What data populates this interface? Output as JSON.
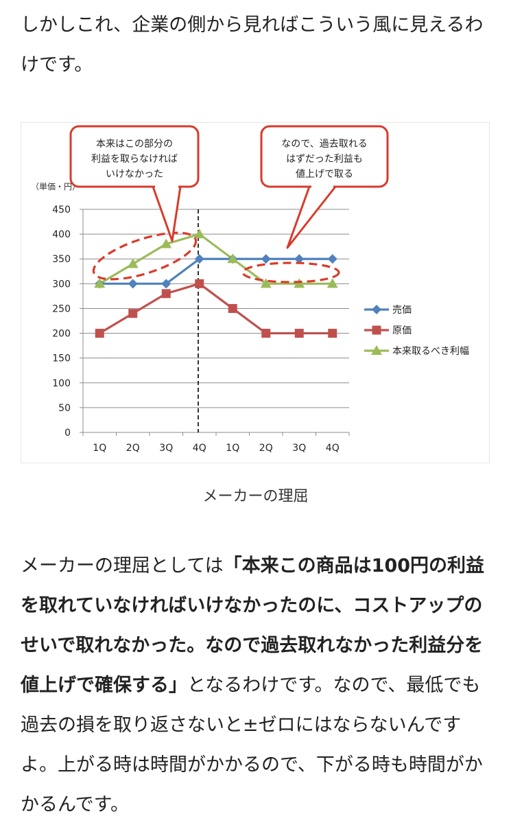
{
  "intro": {
    "text": "しかしこれ、企業の側から見ればこういう風に見えるわけです。"
  },
  "chart_data": {
    "type": "line",
    "categories": [
      "1Q",
      "2Q",
      "3Q",
      "4Q",
      "1Q",
      "2Q",
      "3Q",
      "4Q"
    ],
    "ylabel": "（単価・円）",
    "ylim": [
      0,
      450
    ],
    "yticks": [
      0,
      50,
      100,
      150,
      200,
      250,
      300,
      350,
      400,
      450
    ],
    "grid": true,
    "legend_position": "right",
    "series": [
      {
        "name": "売価",
        "values": [
          300,
          300,
          300,
          350,
          350,
          350,
          350,
          350
        ],
        "color": "#4f81bd",
        "marker": "diamond"
      },
      {
        "name": "原価",
        "values": [
          200,
          240,
          280,
          300,
          250,
          200,
          200,
          200
        ],
        "color": "#c0504d",
        "marker": "square"
      },
      {
        "name": "本来取るべき利幅",
        "values": [
          300,
          340,
          380,
          400,
          350,
          300,
          300,
          300
        ],
        "color": "#9bbb59",
        "marker": "triangle"
      }
    ],
    "callouts": [
      {
        "lines": [
          "本来はこの部分の",
          "利益を取らなければ",
          "いけなかった"
        ]
      },
      {
        "lines": [
          "なので、過去取れる",
          "はずだった利益も",
          "値上げで取る"
        ]
      }
    ],
    "accent_color": "#d93a2b"
  },
  "caption": "メーカーの理屈",
  "body": {
    "lead": "メーカーの理屈としては",
    "emphasis": "「本来この商品は100円の利益を取れていなければいけなかったのに、コストアップのせいで取れなかった。なので過去取れなかった利益分を値上げで確保する」",
    "tail": "となるわけです。なので、最低でも過去の損を取り返さないと±ゼロにはならないんですよ。上がる時は時間がかかるので、下がる時も時間がかかるんです。"
  }
}
